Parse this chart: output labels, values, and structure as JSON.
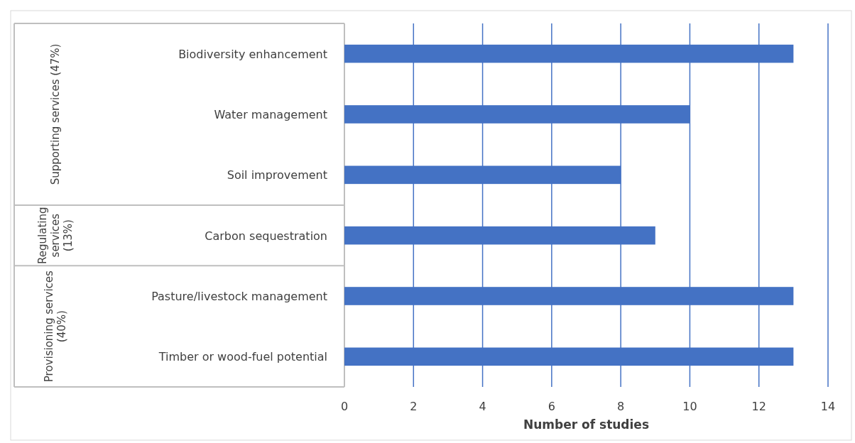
{
  "chart_data": {
    "type": "bar",
    "orientation": "horizontal",
    "categories": [
      "Biodiversity enhancement",
      "Water management",
      "Soil improvement",
      "Carbon sequestration",
      "Pasture/livestock management",
      "Timber or wood-fuel potential"
    ],
    "values": [
      13,
      10,
      8,
      9,
      13,
      13
    ],
    "color": "#4472c4",
    "xlim": [
      0,
      14
    ],
    "xticks": [
      0,
      2,
      4,
      6,
      8,
      10,
      12,
      14
    ],
    "grid": "x",
    "xlabel": "Number of studies",
    "annotations": [
      "Supporting services (47%)",
      "Regulating services (13%)",
      "Provisioning services (40%)"
    ]
  }
}
